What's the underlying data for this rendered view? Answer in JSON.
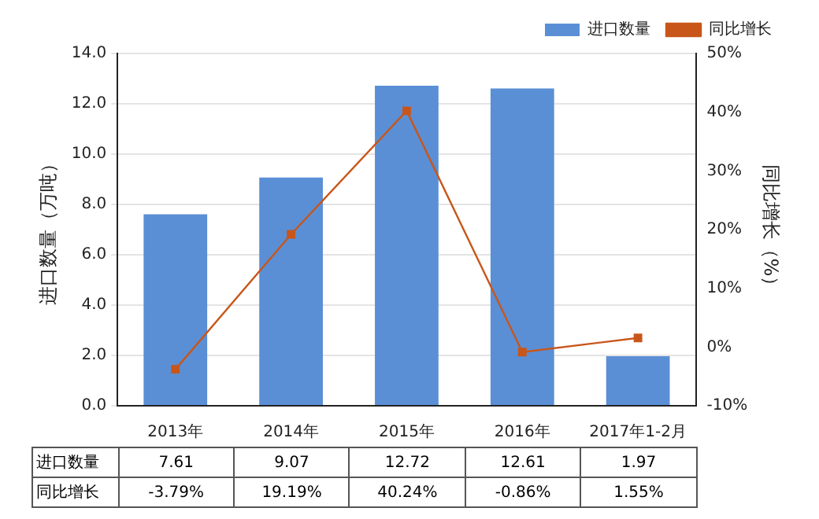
{
  "chart_data": {
    "type": "bar",
    "categories": [
      "2013年",
      "2014年",
      "2015年",
      "2016年",
      "2017年1-2月"
    ],
    "series": [
      {
        "name": "进口数量",
        "color": "#5a8fd6",
        "values": [
          7.61,
          9.07,
          12.72,
          12.61,
          1.97
        ],
        "value_labels": [
          "7.61",
          "9.07",
          "12.72",
          "12.61",
          "1.97"
        ]
      },
      {
        "name": "同比增长",
        "type": "line",
        "axis": "y2",
        "color": "#c8561a",
        "values": [
          -3.79,
          19.19,
          40.24,
          -0.86,
          1.55
        ],
        "value_labels": [
          "-3.79%",
          "19.19%",
          "40.24%",
          "-0.86%",
          "1.55%"
        ]
      }
    ],
    "ylabel": "进口数量（万吨）",
    "y2label": "同比增长（%）",
    "ylim": [
      0,
      14
    ],
    "yticks": [
      {
        "value": 0,
        "label": "0.0"
      },
      {
        "value": 2,
        "label": "2.0"
      },
      {
        "value": 4,
        "label": "4.0"
      },
      {
        "value": 6,
        "label": "6.0"
      },
      {
        "value": 8,
        "label": "8.0"
      },
      {
        "value": 10,
        "label": "10.0"
      },
      {
        "value": 12,
        "label": "12.0"
      },
      {
        "value": 14,
        "label": "14.0"
      }
    ],
    "y2lim": [
      -10,
      50
    ],
    "y2ticks": [
      {
        "value": -10,
        "label": "-10%"
      },
      {
        "value": 0,
        "label": "0%"
      },
      {
        "value": 10,
        "label": "10%"
      },
      {
        "value": 20,
        "label": "20%"
      },
      {
        "value": 30,
        "label": "30%"
      },
      {
        "value": 40,
        "label": "40%"
      },
      {
        "value": 50,
        "label": "50%"
      }
    ],
    "grid": "y",
    "legend": "top right",
    "marker": "square",
    "line_style": "solid"
  }
}
